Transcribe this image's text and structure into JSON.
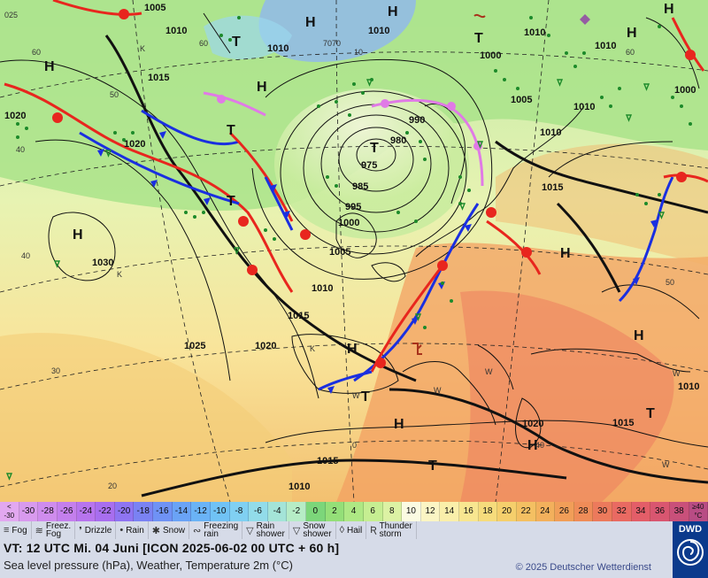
{
  "map": {
    "pressure_labels": [
      "1005",
      "1010",
      "1010",
      "1010",
      "1010",
      "1015",
      "1020",
      "1020",
      "990",
      "980",
      "975",
      "985",
      "995",
      "1000",
      "1005",
      "1010",
      "1015",
      "1025",
      "1030",
      "1020",
      "1000",
      "1010",
      "1005",
      "1010",
      "1015",
      "1010",
      "1000",
      "1015",
      "1010",
      "1015",
      "1010",
      "1020"
    ],
    "pressure_centers": [
      "H",
      "H",
      "H",
      "H",
      "H",
      "H",
      "H",
      "H",
      "H",
      "H",
      "H",
      "H",
      "T",
      "T",
      "T",
      "T",
      "T",
      "T",
      "T",
      "T"
    ],
    "lat_labels": [
      "70",
      "60",
      "50",
      "40",
      "30",
      "20",
      "025",
      "60",
      "60",
      "40",
      "10",
      "70",
      "50",
      "40",
      "0",
      "K",
      "K",
      "K",
      "W",
      "W",
      "W",
      "W",
      "W"
    ]
  },
  "scale": {
    "bins": [
      {
        "label": "<\n-30",
        "color": "#e2a8f0"
      },
      {
        "label": "-30",
        "color": "#d89aee"
      },
      {
        "label": "-28",
        "color": "#cf8ced"
      },
      {
        "label": "-26",
        "color": "#c47fed"
      },
      {
        "label": "-24",
        "color": "#b774ee"
      },
      {
        "label": "-22",
        "color": "#a86eef"
      },
      {
        "label": "-20",
        "color": "#8e74f2"
      },
      {
        "label": "-18",
        "color": "#7a82f3"
      },
      {
        "label": "-16",
        "color": "#6f92f5"
      },
      {
        "label": "-14",
        "color": "#6aa3f6"
      },
      {
        "label": "-12",
        "color": "#6ab3f6"
      },
      {
        "label": "-10",
        "color": "#70c2f5"
      },
      {
        "label": "-8",
        "color": "#80d0f2"
      },
      {
        "label": "-6",
        "color": "#92dcea"
      },
      {
        "label": "-4",
        "color": "#a4e4d8"
      },
      {
        "label": "-2",
        "color": "#b6ecc6"
      },
      {
        "label": "0",
        "color": "#7cd67a"
      },
      {
        "label": "2",
        "color": "#94df78"
      },
      {
        "label": "4",
        "color": "#aee884"
      },
      {
        "label": "6",
        "color": "#c6ee92"
      },
      {
        "label": "8",
        "color": "#dcf2a4"
      },
      {
        "label": "10",
        "color": "#fbfbe2"
      },
      {
        "label": "12",
        "color": "#fbf5c4"
      },
      {
        "label": "14",
        "color": "#faefaa"
      },
      {
        "label": "16",
        "color": "#f8e690"
      },
      {
        "label": "18",
        "color": "#f6dc7c"
      },
      {
        "label": "20",
        "color": "#f5cf6c"
      },
      {
        "label": "22",
        "color": "#f4c062"
      },
      {
        "label": "24",
        "color": "#f3b05c"
      },
      {
        "label": "26",
        "color": "#f19e58"
      },
      {
        "label": "28",
        "color": "#ef8c58"
      },
      {
        "label": "30",
        "color": "#ec7a5c"
      },
      {
        "label": "32",
        "color": "#e96a62"
      },
      {
        "label": "34",
        "color": "#e35e68"
      },
      {
        "label": "36",
        "color": "#d95670"
      },
      {
        "label": "38",
        "color": "#c9507a"
      },
      {
        "label": "≥40\n°C",
        "color": "#b84c84"
      }
    ]
  },
  "legend": {
    "items": [
      {
        "label": "Fog",
        "icon": "fog-icon",
        "sym": "≡"
      },
      {
        "label": "Freez.\nFog",
        "icon": "freezing-fog-icon",
        "sym": "≋"
      },
      {
        "label": "Drizzle",
        "icon": "drizzle-icon",
        "sym": "❜"
      },
      {
        "label": "Rain",
        "icon": "rain-icon",
        "sym": "•"
      },
      {
        "label": "Snow",
        "icon": "snow-icon",
        "sym": "✱"
      },
      {
        "label": "Freezing\nrain",
        "icon": "freezing-rain-icon",
        "sym": "∾"
      },
      {
        "label": "Rain\nshower",
        "icon": "rain-shower-icon",
        "sym": "▽"
      },
      {
        "label": "Snow\nshower",
        "icon": "snow-shower-icon",
        "sym": "▽"
      },
      {
        "label": "Hail",
        "icon": "hail-icon",
        "sym": "◊"
      },
      {
        "label": "Thunder\nstorm",
        "icon": "thunderstorm-icon",
        "sym": "Ʀ"
      }
    ]
  },
  "info": {
    "vt": "VT: 12 UTC Mi.   04 Juni [ICON 2025-06-02  00 UTC + 60 h]",
    "description": "Sea level pressure (hPa), Weather, Temperature 2m (°C)",
    "copyright": "© 2025 Deutscher Wetterdienst",
    "logo": "DWD"
  },
  "colors": {
    "cold_front": "#1a2fe0",
    "warm_front": "#e8261e",
    "occlusion": "#e07ae6",
    "panel_bg": "#d6dbe8",
    "dwd_blue": "#0b3a8c"
  }
}
